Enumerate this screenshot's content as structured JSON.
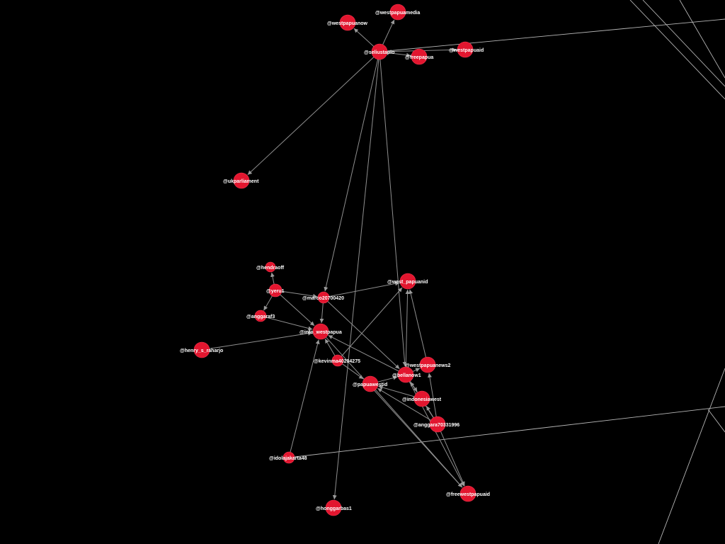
{
  "graph": {
    "colors": {
      "background": "#000000",
      "node": "#e2162f",
      "edge": "#8f8f8f",
      "label": "#ffffff"
    },
    "nodes": [
      {
        "id": "westpapuamedia",
        "label": "@westpapuamedia"
      },
      {
        "id": "westpapuanow",
        "label": "@westpapuanow"
      },
      {
        "id": "seliustapio",
        "label": "@seliustapio"
      },
      {
        "id": "freepapua",
        "label": "@freepapua"
      },
      {
        "id": "westpapuaid",
        "label": "@westpapuaid"
      },
      {
        "id": "ukparliament",
        "label": "@ukparliament"
      },
      {
        "id": "hendraoff",
        "label": "@hendraoff"
      },
      {
        "id": "yeru1",
        "label": "@yeru1"
      },
      {
        "id": "marco",
        "label": "@marco20700420"
      },
      {
        "id": "west_papuanid",
        "label": "@west_papuanid"
      },
      {
        "id": "anggaraf3",
        "label": "@anggaraf3"
      },
      {
        "id": "info_westpapua",
        "label": "@info_westpapua"
      },
      {
        "id": "henry",
        "label": "@henry_s_raharjo"
      },
      {
        "id": "kevinma",
        "label": "@kevinma40204275"
      },
      {
        "id": "westpapuanews2",
        "label": "@westpapuanews2"
      },
      {
        "id": "bellanow1",
        "label": "@bellanow1"
      },
      {
        "id": "papuawestid",
        "label": "@papuawestid"
      },
      {
        "id": "indonesiawest",
        "label": "@indonesiawest"
      },
      {
        "id": "anggara7",
        "label": "@anggara70331996"
      },
      {
        "id": "idolajakarta48",
        "label": "@idolajakarta48"
      },
      {
        "id": "freewestpapuaid",
        "label": "@freewestpapuaid"
      },
      {
        "id": "honggarbas1",
        "label": "@honggarbas1"
      }
    ]
  }
}
